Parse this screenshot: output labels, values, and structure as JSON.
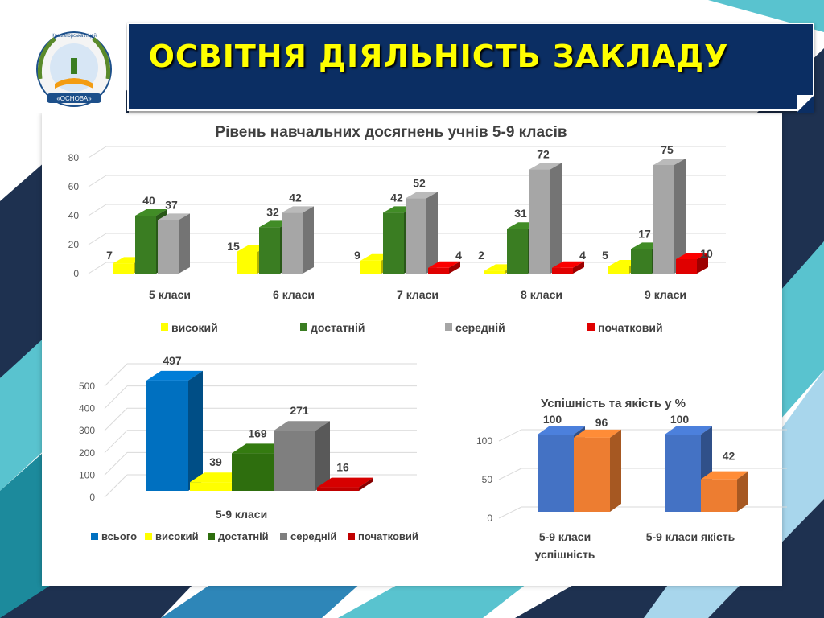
{
  "slide": {
    "title": "ОСВІТНЯ ДІЯЛЬНІСТЬ ЗАКЛАДУ",
    "logo": {
      "text_top": "Краматорська ліцей",
      "text_ribbon": "«ОСНОВА»"
    }
  },
  "colors": {
    "header_bg": "#0b2e63",
    "title_text": "#ffff00",
    "high": "#ffff00",
    "sufficient": "#3a7d22",
    "average": "#a6a6a6",
    "initial": "#e00000",
    "total": "#0070c0",
    "success": "#4472c4",
    "quality": "#ed7d31"
  },
  "chart_data": [
    {
      "type": "bar",
      "title": "Рівень навчальних досягнень учнів 5-9 класів",
      "categories": [
        "5 класи",
        "6 класи",
        "7 класи",
        "8 класи",
        "9 класи"
      ],
      "series": [
        {
          "name": "високий",
          "values": [
            7,
            15,
            9,
            2,
            5
          ],
          "color": "#ffff00"
        },
        {
          "name": "достатній",
          "values": [
            40,
            32,
            42,
            31,
            17
          ],
          "color": "#3a7d22"
        },
        {
          "name": "середній",
          "values": [
            37,
            42,
            52,
            72,
            75
          ],
          "color": "#a6a6a6"
        },
        {
          "name": "початковий",
          "values": [
            null,
            null,
            4,
            4,
            10
          ],
          "color": "#e00000"
        }
      ],
      "yticks": [
        0,
        20,
        40,
        60,
        80
      ],
      "ylim": [
        0,
        80
      ],
      "grid": true,
      "legend": "bottom"
    },
    {
      "type": "bar",
      "categories": [
        "5-9 класи"
      ],
      "series": [
        {
          "name": "всього",
          "values": [
            497
          ],
          "color": "#0070c0"
        },
        {
          "name": "високий",
          "values": [
            39
          ],
          "color": "#ffff00"
        },
        {
          "name": "достатній",
          "values": [
            169
          ],
          "color": "#2e6e0e"
        },
        {
          "name": "середній",
          "values": [
            271
          ],
          "color": "#7f7f7f"
        },
        {
          "name": "початковий",
          "values": [
            16
          ],
          "color": "#c00000"
        }
      ],
      "yticks": [
        0,
        100,
        200,
        300,
        400,
        500
      ],
      "ylim": [
        0,
        500
      ],
      "grid": true,
      "legend": "bottom"
    },
    {
      "type": "bar",
      "title": "Успішність та якість у %",
      "categories": [
        "5-9 класи успішність",
        "5-9 класи якість"
      ],
      "series": [
        {
          "values": [
            100,
            100
          ],
          "color": "#4472c4"
        },
        {
          "values": [
            96,
            42
          ],
          "color": "#ed7d31"
        }
      ],
      "yticks": [
        0,
        50,
        100
      ],
      "ylim": [
        0,
        100
      ],
      "grid": true
    }
  ]
}
